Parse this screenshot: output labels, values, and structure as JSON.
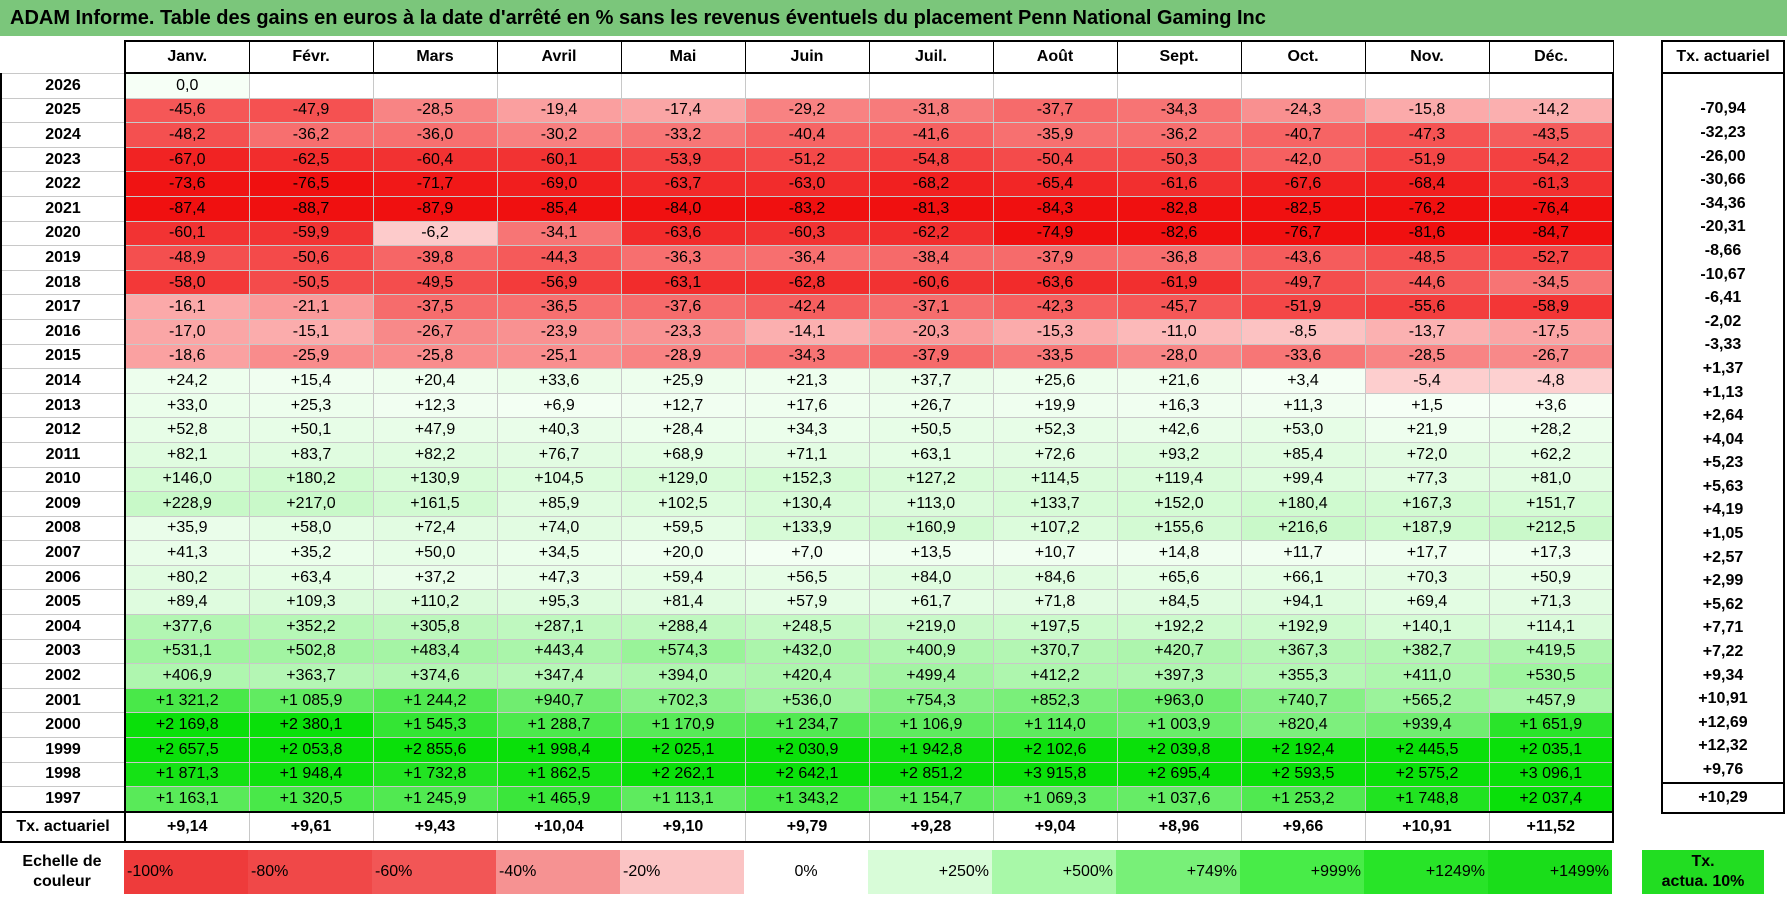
{
  "title": "ADAM Informe. Table des gains en euros à la date d'arrêté en % sans les revenus éventuels du placement Penn National Gaming Inc",
  "months": [
    "Janv.",
    "Févr.",
    "Mars",
    "Avril",
    "Mai",
    "Juin",
    "Juil.",
    "Août",
    "Sept.",
    "Oct.",
    "Nov.",
    "Déc."
  ],
  "tx_header": "Tx. actuariel",
  "rows": [
    {
      "year": "2026",
      "values": [
        "0,0",
        "",
        "",
        "",
        "",
        "",
        "",
        "",
        "",
        "",
        "",
        ""
      ],
      "tx": ""
    },
    {
      "year": "2025",
      "values": [
        "-45,6",
        "-47,9",
        "-28,5",
        "-19,4",
        "-17,4",
        "-29,2",
        "-31,8",
        "-37,7",
        "-34,3",
        "-24,3",
        "-15,8",
        "-14,2"
      ],
      "tx": "-70,94"
    },
    {
      "year": "2024",
      "values": [
        "-48,2",
        "-36,2",
        "-36,0",
        "-30,2",
        "-33,2",
        "-40,4",
        "-41,6",
        "-35,9",
        "-36,2",
        "-40,7",
        "-47,3",
        "-43,5"
      ],
      "tx": "-32,23"
    },
    {
      "year": "2023",
      "values": [
        "-67,0",
        "-62,5",
        "-60,4",
        "-60,1",
        "-53,9",
        "-51,2",
        "-54,8",
        "-50,4",
        "-50,3",
        "-42,0",
        "-51,9",
        "-54,2"
      ],
      "tx": "-26,00"
    },
    {
      "year": "2022",
      "values": [
        "-73,6",
        "-76,5",
        "-71,7",
        "-69,0",
        "-63,7",
        "-63,0",
        "-68,2",
        "-65,4",
        "-61,6",
        "-67,6",
        "-68,4",
        "-61,3"
      ],
      "tx": "-30,66"
    },
    {
      "year": "2021",
      "values": [
        "-87,4",
        "-88,7",
        "-87,9",
        "-85,4",
        "-84,0",
        "-83,2",
        "-81,3",
        "-84,3",
        "-82,8",
        "-82,5",
        "-76,2",
        "-76,4"
      ],
      "tx": "-34,36"
    },
    {
      "year": "2020",
      "values": [
        "-60,1",
        "-59,9",
        "-6,2",
        "-34,1",
        "-63,6",
        "-60,3",
        "-62,2",
        "-74,9",
        "-82,6",
        "-76,7",
        "-81,6",
        "-84,7"
      ],
      "tx": "-20,31"
    },
    {
      "year": "2019",
      "values": [
        "-48,9",
        "-50,6",
        "-39,8",
        "-44,3",
        "-36,3",
        "-36,4",
        "-38,4",
        "-37,9",
        "-36,8",
        "-43,6",
        "-48,5",
        "-52,7"
      ],
      "tx": "-8,66"
    },
    {
      "year": "2018",
      "values": [
        "-58,0",
        "-50,5",
        "-49,5",
        "-56,9",
        "-63,1",
        "-62,8",
        "-60,6",
        "-63,6",
        "-61,9",
        "-49,7",
        "-44,6",
        "-34,5"
      ],
      "tx": "-10,67"
    },
    {
      "year": "2017",
      "values": [
        "-16,1",
        "-21,1",
        "-37,5",
        "-36,5",
        "-37,6",
        "-42,4",
        "-37,1",
        "-42,3",
        "-45,7",
        "-51,9",
        "-55,6",
        "-58,9"
      ],
      "tx": "-6,41"
    },
    {
      "year": "2016",
      "values": [
        "-17,0",
        "-15,1",
        "-26,7",
        "-23,9",
        "-23,3",
        "-14,1",
        "-20,3",
        "-15,3",
        "-11,0",
        "-8,5",
        "-13,7",
        "-17,5"
      ],
      "tx": "-2,02"
    },
    {
      "year": "2015",
      "values": [
        "-18,6",
        "-25,9",
        "-25,8",
        "-25,1",
        "-28,9",
        "-34,3",
        "-37,9",
        "-33,5",
        "-28,0",
        "-33,6",
        "-28,5",
        "-26,7"
      ],
      "tx": "-3,33"
    },
    {
      "year": "2014",
      "values": [
        "+24,2",
        "+15,4",
        "+20,4",
        "+33,6",
        "+25,9",
        "+21,3",
        "+37,7",
        "+25,6",
        "+21,6",
        "+3,4",
        "-5,4",
        "-4,8"
      ],
      "tx": "+1,37"
    },
    {
      "year": "2013",
      "values": [
        "+33,0",
        "+25,3",
        "+12,3",
        "+6,9",
        "+12,7",
        "+17,6",
        "+26,7",
        "+19,9",
        "+16,3",
        "+11,3",
        "+1,5",
        "+3,6"
      ],
      "tx": "+1,13"
    },
    {
      "year": "2012",
      "values": [
        "+52,8",
        "+50,1",
        "+47,9",
        "+40,3",
        "+28,4",
        "+34,3",
        "+50,5",
        "+52,3",
        "+42,6",
        "+53,0",
        "+21,9",
        "+28,2"
      ],
      "tx": "+2,64"
    },
    {
      "year": "2011",
      "values": [
        "+82,1",
        "+83,7",
        "+82,2",
        "+76,7",
        "+68,9",
        "+71,1",
        "+63,1",
        "+72,6",
        "+93,2",
        "+85,4",
        "+72,0",
        "+62,2"
      ],
      "tx": "+4,04"
    },
    {
      "year": "2010",
      "values": [
        "+146,0",
        "+180,2",
        "+130,9",
        "+104,5",
        "+129,0",
        "+152,3",
        "+127,2",
        "+114,5",
        "+119,4",
        "+99,4",
        "+77,3",
        "+81,0"
      ],
      "tx": "+5,23"
    },
    {
      "year": "2009",
      "values": [
        "+228,9",
        "+217,0",
        "+161,5",
        "+85,9",
        "+102,5",
        "+130,4",
        "+113,0",
        "+133,7",
        "+152,0",
        "+180,4",
        "+167,3",
        "+151,7"
      ],
      "tx": "+5,63"
    },
    {
      "year": "2008",
      "values": [
        "+35,9",
        "+58,0",
        "+72,4",
        "+74,0",
        "+59,5",
        "+133,9",
        "+160,9",
        "+107,2",
        "+155,6",
        "+216,6",
        "+187,9",
        "+212,5"
      ],
      "tx": "+4,19"
    },
    {
      "year": "2007",
      "values": [
        "+41,3",
        "+35,2",
        "+50,0",
        "+34,5",
        "+20,0",
        "+7,0",
        "+13,5",
        "+10,7",
        "+14,8",
        "+11,7",
        "+17,7",
        "+17,3"
      ],
      "tx": "+1,05"
    },
    {
      "year": "2006",
      "values": [
        "+80,2",
        "+63,4",
        "+37,2",
        "+47,3",
        "+59,4",
        "+56,5",
        "+84,0",
        "+84,6",
        "+65,6",
        "+66,1",
        "+70,3",
        "+50,9"
      ],
      "tx": "+2,57"
    },
    {
      "year": "2005",
      "values": [
        "+89,4",
        "+109,3",
        "+110,2",
        "+95,3",
        "+81,4",
        "+57,9",
        "+61,7",
        "+71,8",
        "+84,5",
        "+94,1",
        "+69,4",
        "+71,3"
      ],
      "tx": "+2,99"
    },
    {
      "year": "2004",
      "values": [
        "+377,6",
        "+352,2",
        "+305,8",
        "+287,1",
        "+288,4",
        "+248,5",
        "+219,0",
        "+197,5",
        "+192,2",
        "+192,9",
        "+140,1",
        "+114,1"
      ],
      "tx": "+5,62"
    },
    {
      "year": "2003",
      "values": [
        "+531,1",
        "+502,8",
        "+483,4",
        "+443,4",
        "+574,3",
        "+432,0",
        "+400,9",
        "+370,7",
        "+420,7",
        "+367,3",
        "+382,7",
        "+419,5"
      ],
      "tx": "+7,71"
    },
    {
      "year": "2002",
      "values": [
        "+406,9",
        "+363,7",
        "+374,6",
        "+347,4",
        "+394,0",
        "+420,4",
        "+499,4",
        "+412,2",
        "+397,3",
        "+355,3",
        "+411,0",
        "+530,5"
      ],
      "tx": "+7,22"
    },
    {
      "year": "2001",
      "values": [
        "+1 321,2",
        "+1 085,9",
        "+1 244,2",
        "+940,7",
        "+702,3",
        "+536,0",
        "+754,3",
        "+852,3",
        "+963,0",
        "+740,7",
        "+565,2",
        "+457,9"
      ],
      "tx": "+9,34"
    },
    {
      "year": "2000",
      "values": [
        "+2 169,8",
        "+2 380,1",
        "+1 545,3",
        "+1 288,7",
        "+1 170,9",
        "+1 234,7",
        "+1 106,9",
        "+1 114,0",
        "+1 003,9",
        "+820,4",
        "+939,4",
        "+1 651,9"
      ],
      "tx": "+10,91"
    },
    {
      "year": "1999",
      "values": [
        "+2 657,5",
        "+2 053,8",
        "+2 855,6",
        "+1 998,4",
        "+2 025,1",
        "+2 030,9",
        "+1 942,8",
        "+2 102,6",
        "+2 039,8",
        "+2 192,4",
        "+2 445,5",
        "+2 035,1"
      ],
      "tx": "+12,69"
    },
    {
      "year": "1998",
      "values": [
        "+1 871,3",
        "+1 948,4",
        "+1 732,8",
        "+1 862,5",
        "+2 262,1",
        "+2 642,1",
        "+2 851,2",
        "+3 915,8",
        "+2 695,4",
        "+2 593,5",
        "+2 575,2",
        "+3 096,1"
      ],
      "tx": "+12,32"
    },
    {
      "year": "1997",
      "values": [
        "+1 163,1",
        "+1 320,5",
        "+1 245,9",
        "+1 465,9",
        "+1 113,1",
        "+1 343,2",
        "+1 154,7",
        "+1 069,3",
        "+1 037,6",
        "+1 253,2",
        "+1 748,8",
        "+2 037,4"
      ],
      "tx": "+9,76"
    }
  ],
  "summary": {
    "label": "Tx. actuariel",
    "values": [
      "+9,14",
      "+9,61",
      "+9,43",
      "+10,04",
      "+9,10",
      "+9,79",
      "+9,28",
      "+9,04",
      "+8,96",
      "+9,66",
      "+10,91",
      "+11,52"
    ],
    "tx": "+10,29"
  },
  "legend": {
    "label_line1": "Echelle de",
    "label_line2": "couleur",
    "items": [
      {
        "text": "-100%",
        "color": "#ee3b3b"
      },
      {
        "text": "-80%",
        "color": "#f04848"
      },
      {
        "text": "-60%",
        "color": "#f25656"
      },
      {
        "text": "-40%",
        "color": "#f69292"
      },
      {
        "text": "-20%",
        "color": "#fbc4c4"
      },
      {
        "text": "0%",
        "color": "#ffffff"
      },
      {
        "text": "+250%",
        "color": "#d8fcd8"
      },
      {
        "text": "+500%",
        "color": "#a8f8a8"
      },
      {
        "text": "+749%",
        "color": "#78f078"
      },
      {
        "text": "+999%",
        "color": "#48ec48"
      },
      {
        "text": "+1249%",
        "color": "#28e428"
      },
      {
        "text": "+1499%",
        "color": "#1add1a"
      }
    ],
    "tx_line1": "Tx.",
    "tx_line2": "actua. 10%",
    "tx_color": "#22dd22"
  },
  "colors": {
    "title_bg": "#7bc67b"
  }
}
